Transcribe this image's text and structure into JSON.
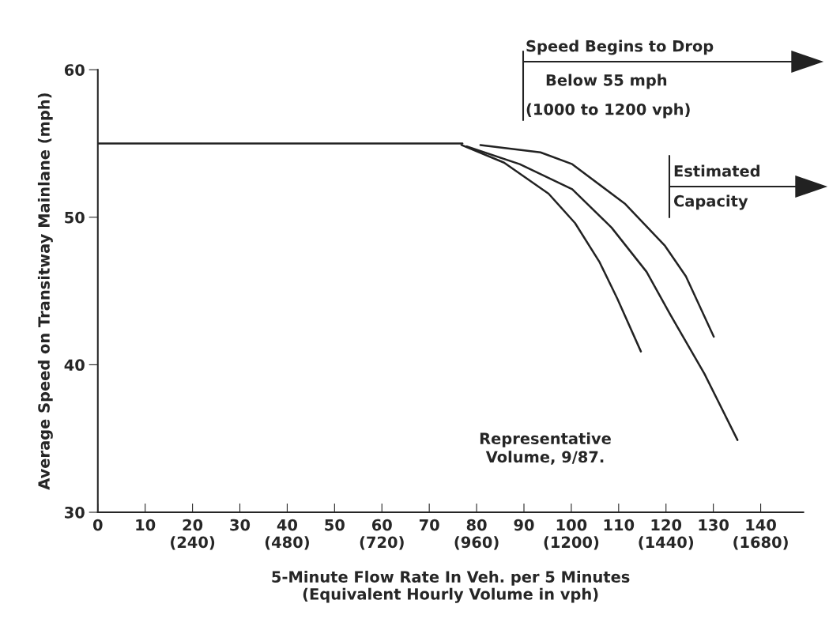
{
  "chart_data": {
    "type": "line",
    "xlabel": "5-Minute Flow Rate In Veh. per 5 Minutes\n(Equivalent Hourly Volume in vph)",
    "ylabel": "Average Speed on Transitway Mainlane (mph)",
    "series": [
      {
        "color": "#222222",
        "x": [
          0,
          77
        ],
        "values": [
          55,
          55
        ]
      },
      {
        "color": "#222222",
        "x": [
          76.8,
          85.8,
          95.2,
          100.8,
          105.9,
          109.7,
          114.7
        ],
        "values": [
          54.9,
          53.7,
          51.6,
          49.6,
          47.0,
          44.5,
          40.9
        ]
      },
      {
        "color": "#222222",
        "x": [
          77.9,
          89.1,
          100.2,
          108.5,
          115.9,
          120.9,
          128.1,
          135.1
        ],
        "values": [
          54.8,
          53.6,
          51.9,
          49.3,
          46.3,
          43.4,
          39.4,
          34.9
        ]
      },
      {
        "color": "#222222",
        "x": [
          80.8,
          93.5,
          100.2,
          111.4,
          119.7,
          124.2,
          130.1
        ],
        "values": [
          54.9,
          54.4,
          53.6,
          50.9,
          48.1,
          46.0,
          41.9
        ]
      }
    ],
    "xlim": [
      0,
      149
    ],
    "ylim": [
      30,
      60
    ],
    "xticks": [
      0,
      10,
      {
        "value": 20,
        "label": "20\n(240)"
      },
      30,
      {
        "value": 40,
        "label": "40\n(480)"
      },
      50,
      {
        "value": 60,
        "label": "60\n(720)"
      },
      70,
      {
        "value": 80,
        "label": "80\n(960)"
      },
      90,
      {
        "value": 100,
        "label": "100\n(1200)"
      },
      110,
      {
        "value": 120,
        "label": "120\n(1440)"
      },
      130,
      {
        "value": 140,
        "label": "140\n(1680)"
      }
    ],
    "yticks": [
      30,
      40,
      50,
      60
    ],
    "grid": false,
    "legend": false,
    "marker": "none",
    "line_style": "solid",
    "annotations": [
      "Speed Begins to Drop",
      "Below 55 mph",
      "(1000 to 1200 vph)",
      "Estimated",
      "Capacity",
      "Representative\nVolume, 9/87."
    ]
  }
}
